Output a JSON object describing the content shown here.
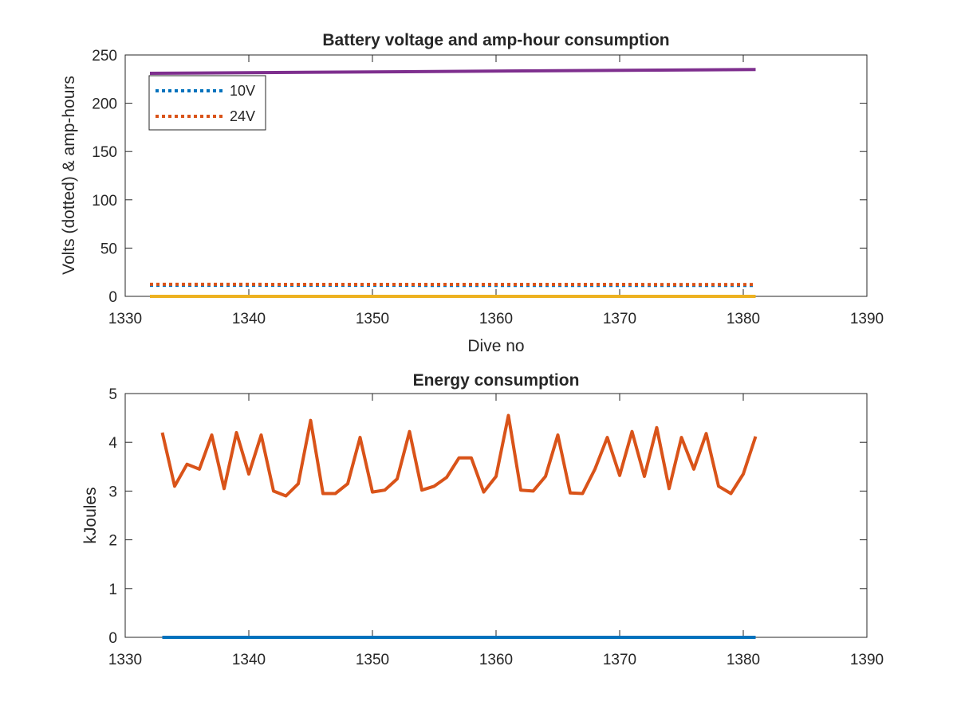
{
  "chart_data": [
    {
      "type": "line",
      "title": "Battery voltage and amp-hour consumption",
      "xlabel": "Dive no",
      "ylabel": "Volts (dotted) & amp-hours",
      "xlim": [
        1330,
        1390
      ],
      "ylim": [
        0,
        250
      ],
      "xticks": [
        1330,
        1340,
        1350,
        1360,
        1370,
        1380,
        1390
      ],
      "yticks": [
        0,
        50,
        100,
        150,
        200,
        250
      ],
      "grid": false,
      "legend_position": "top-left",
      "series": [
        {
          "name": "10V",
          "style": "dotted",
          "color": "#0072BD",
          "x": [
            1332,
            1381
          ],
          "y": [
            11.5,
            11.3
          ],
          "in_legend": true
        },
        {
          "name": "24V",
          "style": "dotted",
          "color": "#D95319",
          "x": [
            1332,
            1381
          ],
          "y": [
            12.5,
            12.3
          ],
          "in_legend": true
        },
        {
          "style": "solid",
          "color": "#EDB120",
          "x": [
            1332,
            1381
          ],
          "y": [
            0,
            0
          ],
          "in_legend": false
        },
        {
          "style": "solid",
          "color": "#7E2F8E",
          "x": [
            1332,
            1381
          ],
          "y": [
            231,
            235
          ],
          "in_legend": false
        }
      ]
    },
    {
      "type": "line",
      "title": "Energy consumption",
      "xlabel": "",
      "ylabel": "kJoules",
      "xlim": [
        1330,
        1390
      ],
      "ylim": [
        0,
        5
      ],
      "xticks": [
        1330,
        1340,
        1350,
        1360,
        1370,
        1380,
        1390
      ],
      "yticks": [
        0,
        1,
        2,
        3,
        4,
        5
      ],
      "grid": false,
      "legend_position": "none",
      "series": [
        {
          "style": "solid",
          "color": "#0072BD",
          "x": [
            1333,
            1381
          ],
          "y": [
            0,
            0
          ]
        },
        {
          "style": "solid",
          "color": "#D95319",
          "x": [
            1333,
            1334,
            1335,
            1336,
            1337,
            1338,
            1339,
            1340,
            1341,
            1342,
            1343,
            1344,
            1345,
            1346,
            1347,
            1348,
            1349,
            1350,
            1351,
            1352,
            1353,
            1354,
            1355,
            1356,
            1357,
            1358,
            1359,
            1360,
            1361,
            1362,
            1363,
            1364,
            1365,
            1366,
            1367,
            1368,
            1369,
            1370,
            1371,
            1372,
            1373,
            1374,
            1375,
            1376,
            1377,
            1378,
            1379,
            1380,
            1381
          ],
          "y": [
            4.2,
            3.1,
            3.55,
            3.45,
            4.15,
            3.05,
            4.2,
            3.35,
            4.15,
            3.0,
            2.9,
            3.15,
            4.45,
            2.95,
            2.95,
            3.15,
            4.1,
            2.98,
            3.02,
            3.25,
            4.22,
            3.02,
            3.1,
            3.28,
            3.68,
            3.68,
            2.98,
            3.3,
            4.55,
            3.02,
            3.0,
            3.3,
            4.15,
            2.96,
            2.95,
            3.45,
            4.1,
            3.32,
            4.22,
            3.3,
            4.3,
            3.05,
            4.1,
            3.45,
            4.18,
            3.1,
            2.95,
            3.35,
            4.12
          ]
        }
      ]
    }
  ]
}
